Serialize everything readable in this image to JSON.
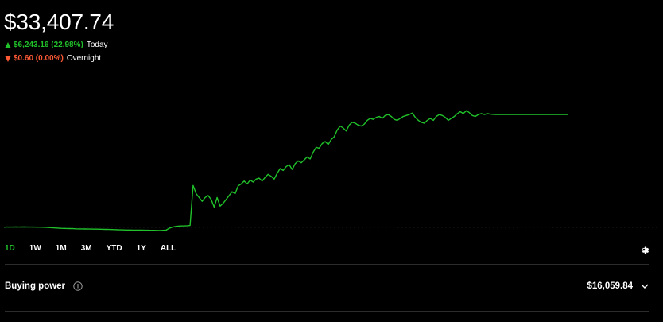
{
  "portfolio": {
    "value": "$33,407.74",
    "today": {
      "direction": "up",
      "change": "$6,243.16 (22.98%)",
      "label": "Today"
    },
    "overnight": {
      "direction": "down",
      "change": "$0.60 (0.00%)",
      "label": "Overnight"
    }
  },
  "colors": {
    "positive": "#20c12a",
    "negative": "#ff5a36",
    "background": "#000000",
    "divider": "#2c2c2c"
  },
  "range_tabs": [
    {
      "label": "1D",
      "active": true
    },
    {
      "label": "1W",
      "active": false
    },
    {
      "label": "1M",
      "active": false
    },
    {
      "label": "3M",
      "active": false
    },
    {
      "label": "YTD",
      "active": false
    },
    {
      "label": "1Y",
      "active": false
    },
    {
      "label": "ALL",
      "active": false
    }
  ],
  "buying_power": {
    "label": "Buying power",
    "value": "$16,059.84"
  },
  "icons": {
    "settings": "gear-icon",
    "info": "info-icon",
    "expand": "chevron-down-icon"
  },
  "chart_data": {
    "type": "line",
    "baseline_value": 27164.58,
    "ylim": [
      26900,
      34200
    ],
    "grid": false,
    "series": [
      {
        "values": [
          27160,
          27162,
          27165,
          27163,
          27168,
          27166,
          27170,
          27167,
          27164,
          27166,
          27162,
          27160,
          27158,
          27156,
          27150,
          27140,
          27130,
          27120,
          27110,
          27100,
          27095,
          27090,
          27085,
          27080,
          27075,
          27070,
          27068,
          27065,
          27062,
          27060,
          27058,
          27055,
          27052,
          27050,
          27045,
          27040,
          27035,
          27030,
          27025,
          27020,
          27015,
          27012,
          27010,
          27008,
          27006,
          27004,
          27002,
          27000,
          26998,
          26996,
          26994,
          26990,
          26985,
          26995,
          27005,
          27100,
          27160,
          27190,
          27215,
          27220,
          27225,
          27235,
          27245,
          29320,
          28900,
          28700,
          28500,
          28700,
          28800,
          28600,
          28200,
          28700,
          28250,
          28400,
          28600,
          28800,
          29000,
          28900,
          29300,
          29400,
          29550,
          29400,
          29600,
          29500,
          29650,
          29700,
          29550,
          29750,
          29900,
          29800,
          29650,
          29950,
          30200,
          30100,
          30300,
          30400,
          30150,
          30450,
          30600,
          30500,
          30650,
          30800,
          30700,
          31050,
          31300,
          31250,
          31500,
          31600,
          31450,
          31700,
          31850,
          32200,
          32400,
          32300,
          32150,
          32450,
          32600,
          32550,
          32450,
          32400,
          32500,
          32700,
          32800,
          32750,
          32850,
          32900,
          32800,
          32950,
          33000,
          32900,
          32750,
          32700,
          32800,
          32900,
          32950,
          33000,
          33080,
          32850,
          32700,
          32600,
          32550,
          32700,
          32800,
          32700,
          32900,
          33000,
          32950,
          32850,
          32700,
          32800,
          32900,
          33050,
          33150,
          33050,
          33200,
          33100,
          32950,
          32900,
          33000,
          33050,
          33000,
          33050,
          33020,
          33010,
          33005,
          33000,
          33000,
          33000,
          33000,
          33000,
          33000,
          33000,
          33000,
          33000,
          33000,
          33000,
          33000,
          33000,
          33000,
          33000,
          33000,
          33000,
          33000,
          33000,
          33000,
          33000,
          33000,
          33000,
          33000
        ]
      }
    ]
  }
}
